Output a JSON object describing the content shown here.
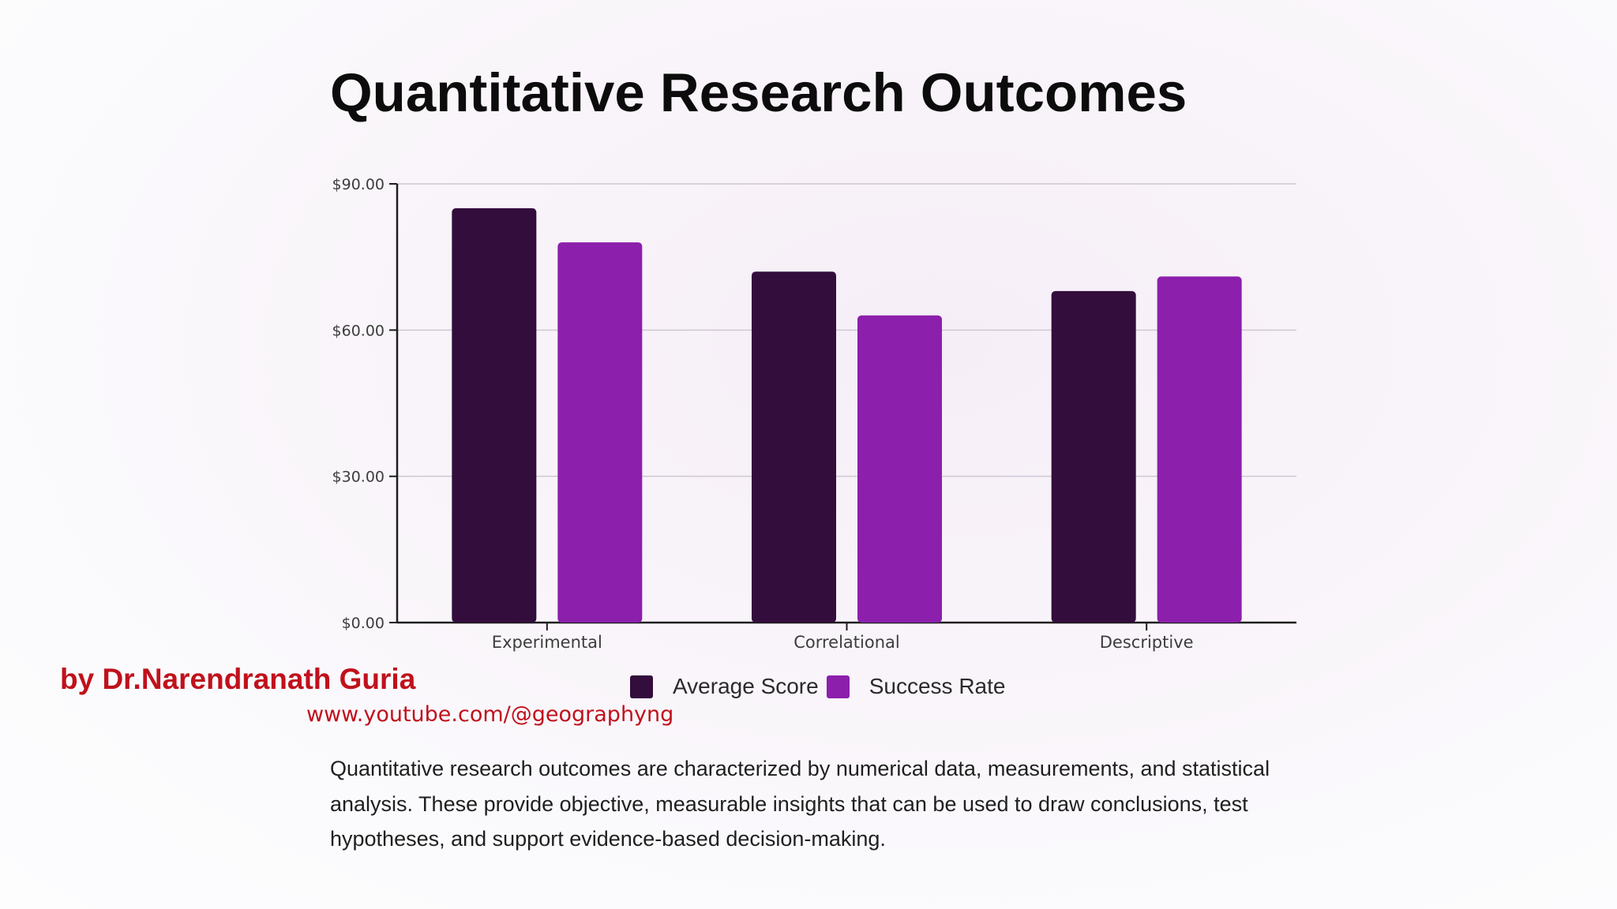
{
  "slide": {
    "title": "Quantitative Research Outcomes",
    "author": "by Dr.Narendranath Guria",
    "url": "www.youtube.com/@geographyng",
    "description": "Quantitative research outcomes are characterized by numerical data, measurements, and statistical analysis. These provide objective, measurable insights that can be used to draw conclusions, test hypotheses, and support evidence-based decision-making."
  },
  "chart_data": {
    "type": "bar",
    "categories": [
      "Experimental",
      "Correlational",
      "Descriptive"
    ],
    "series": [
      {
        "name": "Average Score",
        "color": "#330d3c",
        "values": [
          85,
          72,
          68
        ]
      },
      {
        "name": "Success Rate",
        "color": "#8c1fac",
        "values": [
          78,
          63,
          71
        ]
      }
    ],
    "yticks": [
      {
        "value": 0,
        "label": "$0.00"
      },
      {
        "value": 30,
        "label": "$30.00"
      },
      {
        "value": 60,
        "label": "$60.00"
      },
      {
        "value": 90,
        "label": "$90.00"
      }
    ],
    "ylim": [
      0,
      90
    ],
    "grid": true,
    "legend_position": "bottom"
  }
}
